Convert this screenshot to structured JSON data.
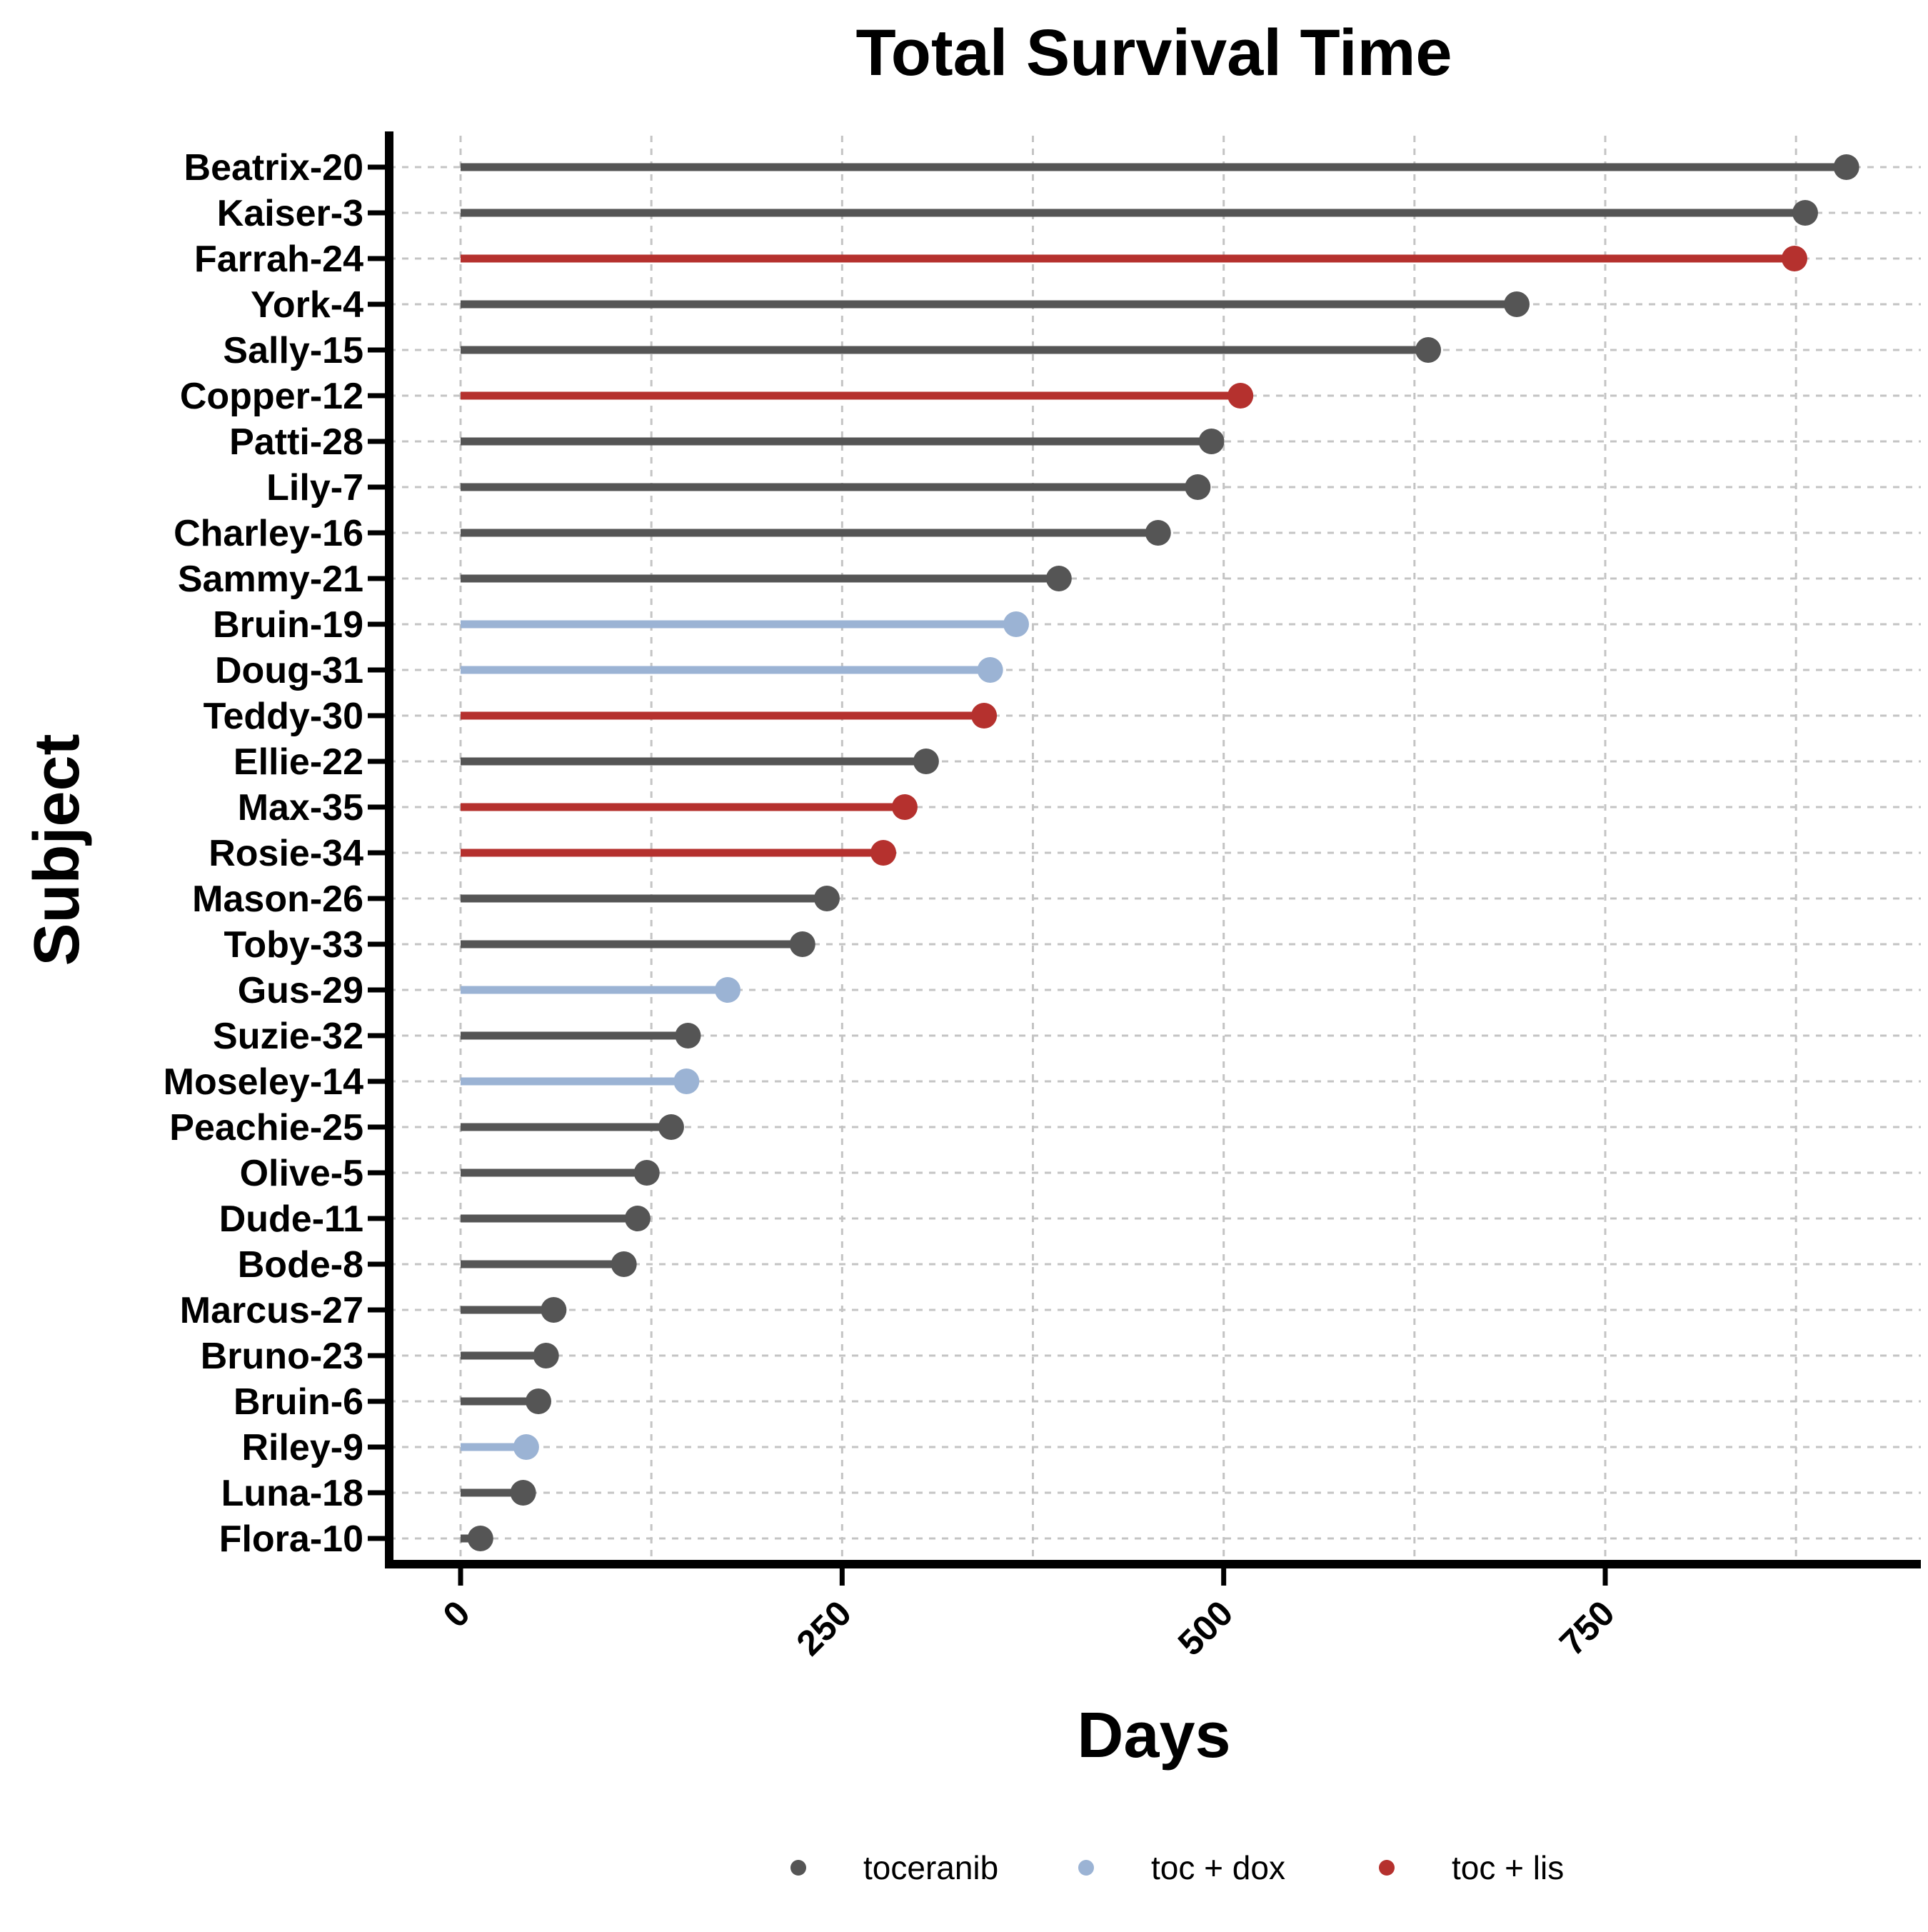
{
  "chart_data": {
    "type": "lollipop",
    "title": "Total Survival Time",
    "xlabel": "Days",
    "ylabel": "Subject",
    "xlim": [
      -48,
      960
    ],
    "x_ticks": [
      0,
      250,
      500,
      750
    ],
    "x_tick_labels": [
      "0",
      "250",
      "500",
      "750"
    ],
    "grid": "dashed",
    "legend_position": "bottom",
    "colors": {
      "toceranib": "#555555",
      "toc + dox": "#9bb3d4",
      "toc + lis": "#b5312e"
    },
    "legend": [
      {
        "label": "toceranib",
        "color": "#555555"
      },
      {
        "label": "toc + dox",
        "color": "#9bb3d4"
      },
      {
        "label": "toc + lis",
        "color": "#b5312e"
      }
    ],
    "points": [
      {
        "subject": "Beatrix-20",
        "days": 908,
        "group": "toceranib"
      },
      {
        "subject": "Kaiser-3",
        "days": 881,
        "group": "toceranib"
      },
      {
        "subject": "Farrah-24",
        "days": 874,
        "group": "toc + lis"
      },
      {
        "subject": "York-4",
        "days": 692,
        "group": "toceranib"
      },
      {
        "subject": "Sally-15",
        "days": 634,
        "group": "toceranib"
      },
      {
        "subject": "Copper-12",
        "days": 511,
        "group": "toc + lis"
      },
      {
        "subject": "Patti-28",
        "days": 492,
        "group": "toceranib"
      },
      {
        "subject": "Lily-7",
        "days": 483,
        "group": "toceranib"
      },
      {
        "subject": "Charley-16",
        "days": 457,
        "group": "toceranib"
      },
      {
        "subject": "Sammy-21",
        "days": 392,
        "group": "toceranib"
      },
      {
        "subject": "Bruin-19",
        "days": 364,
        "group": "toc + dox"
      },
      {
        "subject": "Doug-31",
        "days": 347,
        "group": "toc + dox"
      },
      {
        "subject": "Teddy-30",
        "days": 343,
        "group": "toc + lis"
      },
      {
        "subject": "Ellie-22",
        "days": 305,
        "group": "toceranib"
      },
      {
        "subject": "Max-35",
        "days": 291,
        "group": "toc + lis"
      },
      {
        "subject": "Rosie-34",
        "days": 277,
        "group": "toc + lis"
      },
      {
        "subject": "Mason-26",
        "days": 240,
        "group": "toceranib"
      },
      {
        "subject": "Toby-33",
        "days": 224,
        "group": "toceranib"
      },
      {
        "subject": "Gus-29",
        "days": 175,
        "group": "toc + dox"
      },
      {
        "subject": "Suzie-32",
        "days": 149,
        "group": "toceranib"
      },
      {
        "subject": "Moseley-14",
        "days": 148,
        "group": "toc + dox"
      },
      {
        "subject": "Peachie-25",
        "days": 138,
        "group": "toceranib"
      },
      {
        "subject": "Olive-5",
        "days": 122,
        "group": "toceranib"
      },
      {
        "subject": "Dude-11",
        "days": 116,
        "group": "toceranib"
      },
      {
        "subject": "Bode-8",
        "days": 107,
        "group": "toceranib"
      },
      {
        "subject": "Marcus-27",
        "days": 61,
        "group": "toceranib"
      },
      {
        "subject": "Bruno-23",
        "days": 56,
        "group": "toceranib"
      },
      {
        "subject": "Bruin-6",
        "days": 51,
        "group": "toceranib"
      },
      {
        "subject": "Riley-9",
        "days": 43,
        "group": "toc + dox"
      },
      {
        "subject": "Luna-18",
        "days": 41,
        "group": "toceranib"
      },
      {
        "subject": "Flora-10",
        "days": 13,
        "group": "toceranib"
      }
    ]
  }
}
